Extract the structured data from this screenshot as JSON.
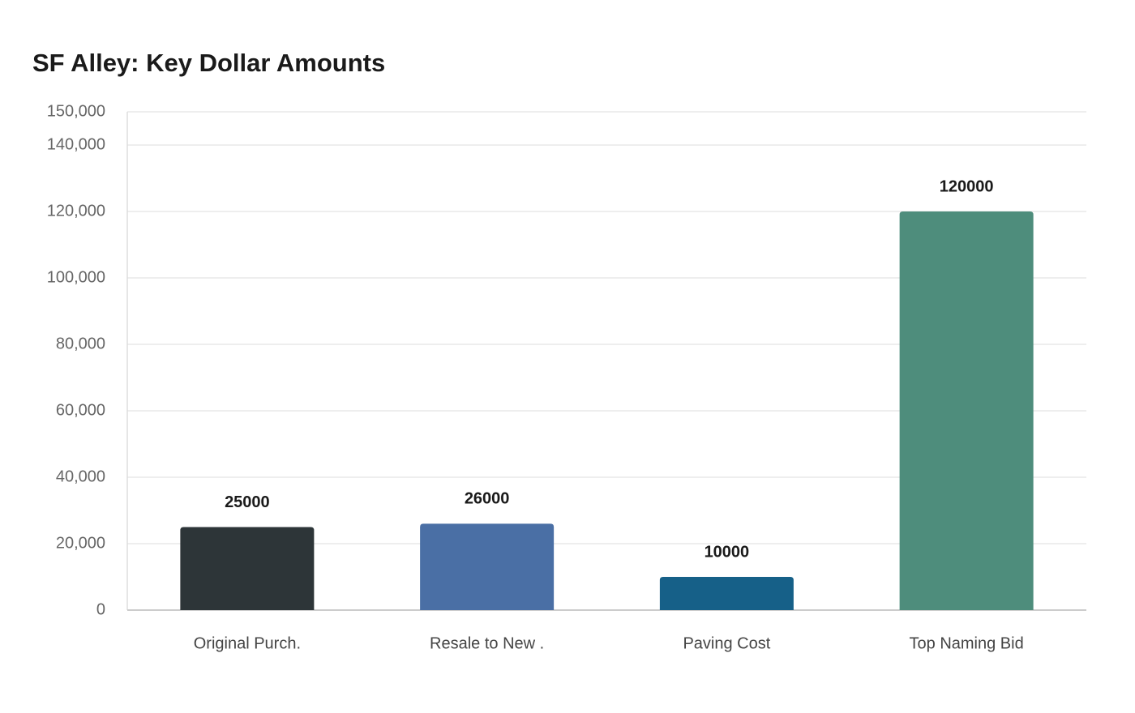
{
  "chart_data": {
    "type": "bar",
    "title": "SF Alley: Key Dollar Amounts",
    "categories": [
      "Original Purch.",
      "Resale to New .",
      "Paving Cost",
      "Top Naming Bid"
    ],
    "values": [
      25000,
      26000,
      10000,
      120000
    ],
    "colors": [
      "#2d3538",
      "#4a6fa5",
      "#166088",
      "#4e8d7c"
    ],
    "ylim": [
      0,
      150000
    ],
    "yticks": [
      0,
      {
        "value": 20000,
        "label": "20,000"
      },
      {
        "value": 40000,
        "label": "40,000"
      },
      {
        "value": 60000,
        "label": "60,000"
      },
      {
        "value": 80000,
        "label": "80,000"
      },
      {
        "value": 100000,
        "label": "100,000"
      },
      {
        "value": 120000,
        "label": "120,000"
      },
      {
        "value": 140000,
        "label": "140,000"
      },
      {
        "value": 150000,
        "label": "150,000"
      }
    ],
    "grid": true
  }
}
